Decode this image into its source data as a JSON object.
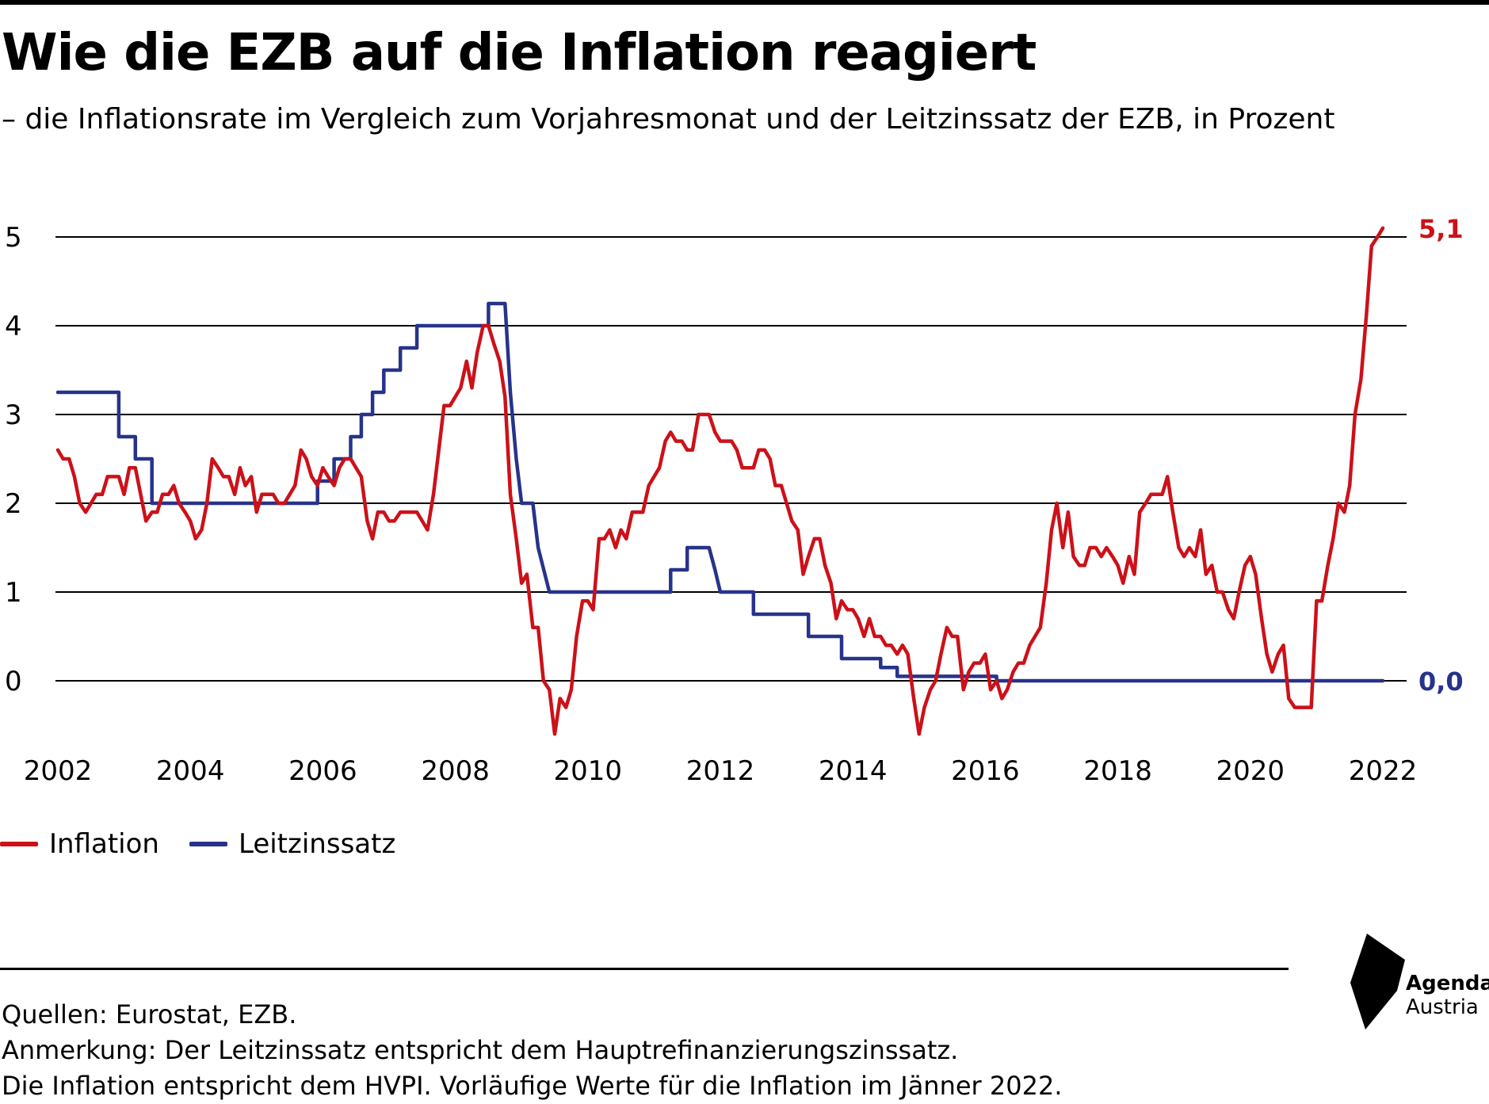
{
  "header": {
    "title": "Wie die EZB auf die Inflation reagiert",
    "subtitle": "– die Inflationsrate im Vergleich zum Vorjahresmonat und der Leitzinssatz der EZB, in Prozent"
  },
  "footer": {
    "source_lines": [
      "Quellen: Eurostat, EZB.",
      "Anmerkung: Der Leitzinssatz entspricht dem Hauptrefinanzierungszinssatz.",
      "Die Inflation entspricht dem HVPI. Vorläufige Werte für die Inflation im Jänner 2022."
    ]
  },
  "logo": {
    "line1": "Agenda",
    "line2": "Austria"
  },
  "colors": {
    "inflation": "#cc1119",
    "rate": "#27338a",
    "grid": "#000000"
  },
  "chart_data": {
    "type": "line",
    "title": "Wie die EZB auf die Inflation reagiert",
    "subtitle": "– die Inflationsrate im Vergleich zum Vorjahresmonat und der Leitzinssatz der EZB, in Prozent",
    "xlabel": "",
    "ylabel": "",
    "xlim": [
      2002.0,
      2022.083
    ],
    "ylim": [
      -0.65,
      5.1
    ],
    "y_ticks": [
      0,
      1,
      2,
      3,
      4,
      5
    ],
    "x_ticks": [
      2002,
      2004,
      2006,
      2008,
      2010,
      2012,
      2014,
      2016,
      2018,
      2020,
      2022
    ],
    "grid": "horizontal",
    "legend_position": "bottom-left",
    "end_labels": {
      "inflation": "5,1",
      "rate": "0,0"
    },
    "series": [
      {
        "name": "Inflation",
        "color": "#cc1119",
        "points": [
          [
            2002.0,
            2.6
          ],
          [
            2002.08,
            2.5
          ],
          [
            2002.17,
            2.5
          ],
          [
            2002.25,
            2.3
          ],
          [
            2002.33,
            2.0
          ],
          [
            2002.42,
            1.9
          ],
          [
            2002.5,
            2.0
          ],
          [
            2002.58,
            2.1
          ],
          [
            2002.67,
            2.1
          ],
          [
            2002.75,
            2.3
          ],
          [
            2002.83,
            2.3
          ],
          [
            2002.92,
            2.3
          ],
          [
            2003.0,
            2.1
          ],
          [
            2003.08,
            2.4
          ],
          [
            2003.17,
            2.4
          ],
          [
            2003.25,
            2.1
          ],
          [
            2003.33,
            1.8
          ],
          [
            2003.42,
            1.9
          ],
          [
            2003.5,
            1.9
          ],
          [
            2003.58,
            2.1
          ],
          [
            2003.67,
            2.1
          ],
          [
            2003.75,
            2.2
          ],
          [
            2003.83,
            2.0
          ],
          [
            2003.92,
            1.9
          ],
          [
            2004.0,
            1.8
          ],
          [
            2004.08,
            1.6
          ],
          [
            2004.17,
            1.7
          ],
          [
            2004.25,
            2.0
          ],
          [
            2004.33,
            2.5
          ],
          [
            2004.42,
            2.4
          ],
          [
            2004.5,
            2.3
          ],
          [
            2004.58,
            2.3
          ],
          [
            2004.67,
            2.1
          ],
          [
            2004.75,
            2.4
          ],
          [
            2004.83,
            2.2
          ],
          [
            2004.92,
            2.3
          ],
          [
            2005.0,
            1.9
          ],
          [
            2005.08,
            2.1
          ],
          [
            2005.17,
            2.1
          ],
          [
            2005.25,
            2.1
          ],
          [
            2005.33,
            2.0
          ],
          [
            2005.42,
            2.0
          ],
          [
            2005.5,
            2.1
          ],
          [
            2005.58,
            2.2
          ],
          [
            2005.67,
            2.6
          ],
          [
            2005.75,
            2.5
          ],
          [
            2005.83,
            2.3
          ],
          [
            2005.92,
            2.2
          ],
          [
            2006.0,
            2.4
          ],
          [
            2006.08,
            2.3
          ],
          [
            2006.17,
            2.2
          ],
          [
            2006.25,
            2.4
          ],
          [
            2006.33,
            2.5
          ],
          [
            2006.42,
            2.5
          ],
          [
            2006.5,
            2.4
          ],
          [
            2006.58,
            2.3
          ],
          [
            2006.67,
            1.8
          ],
          [
            2006.75,
            1.6
          ],
          [
            2006.83,
            1.9
          ],
          [
            2006.92,
            1.9
          ],
          [
            2007.0,
            1.8
          ],
          [
            2007.08,
            1.8
          ],
          [
            2007.17,
            1.9
          ],
          [
            2007.25,
            1.9
          ],
          [
            2007.33,
            1.9
          ],
          [
            2007.42,
            1.9
          ],
          [
            2007.5,
            1.8
          ],
          [
            2007.58,
            1.7
          ],
          [
            2007.67,
            2.1
          ],
          [
            2007.75,
            2.6
          ],
          [
            2007.83,
            3.1
          ],
          [
            2007.92,
            3.1
          ],
          [
            2008.0,
            3.2
          ],
          [
            2008.08,
            3.3
          ],
          [
            2008.17,
            3.6
          ],
          [
            2008.25,
            3.3
          ],
          [
            2008.33,
            3.7
          ],
          [
            2008.42,
            4.0
          ],
          [
            2008.5,
            4.0
          ],
          [
            2008.58,
            3.8
          ],
          [
            2008.67,
            3.6
          ],
          [
            2008.75,
            3.2
          ],
          [
            2008.83,
            2.1
          ],
          [
            2008.92,
            1.6
          ],
          [
            2009.0,
            1.1
          ],
          [
            2009.08,
            1.2
          ],
          [
            2009.17,
            0.6
          ],
          [
            2009.25,
            0.6
          ],
          [
            2009.33,
            0.0
          ],
          [
            2009.42,
            -0.1
          ],
          [
            2009.5,
            -0.6
          ],
          [
            2009.58,
            -0.2
          ],
          [
            2009.67,
            -0.3
          ],
          [
            2009.75,
            -0.1
          ],
          [
            2009.83,
            0.5
          ],
          [
            2009.92,
            0.9
          ],
          [
            2010.0,
            0.9
          ],
          [
            2010.08,
            0.8
          ],
          [
            2010.17,
            1.6
          ],
          [
            2010.25,
            1.6
          ],
          [
            2010.33,
            1.7
          ],
          [
            2010.42,
            1.5
          ],
          [
            2010.5,
            1.7
          ],
          [
            2010.58,
            1.6
          ],
          [
            2010.67,
            1.9
          ],
          [
            2010.75,
            1.9
          ],
          [
            2010.83,
            1.9
          ],
          [
            2010.92,
            2.2
          ],
          [
            2011.0,
            2.3
          ],
          [
            2011.08,
            2.4
          ],
          [
            2011.17,
            2.7
          ],
          [
            2011.25,
            2.8
          ],
          [
            2011.33,
            2.7
          ],
          [
            2011.42,
            2.7
          ],
          [
            2011.5,
            2.6
          ],
          [
            2011.58,
            2.6
          ],
          [
            2011.67,
            3.0
          ],
          [
            2011.75,
            3.0
          ],
          [
            2011.83,
            3.0
          ],
          [
            2011.92,
            2.8
          ],
          [
            2012.0,
            2.7
          ],
          [
            2012.08,
            2.7
          ],
          [
            2012.17,
            2.7
          ],
          [
            2012.25,
            2.6
          ],
          [
            2012.33,
            2.4
          ],
          [
            2012.42,
            2.4
          ],
          [
            2012.5,
            2.4
          ],
          [
            2012.58,
            2.6
          ],
          [
            2012.67,
            2.6
          ],
          [
            2012.75,
            2.5
          ],
          [
            2012.83,
            2.2
          ],
          [
            2012.92,
            2.2
          ],
          [
            2013.0,
            2.0
          ],
          [
            2013.08,
            1.8
          ],
          [
            2013.17,
            1.7
          ],
          [
            2013.25,
            1.2
          ],
          [
            2013.33,
            1.4
          ],
          [
            2013.42,
            1.6
          ],
          [
            2013.5,
            1.6
          ],
          [
            2013.58,
            1.3
          ],
          [
            2013.67,
            1.1
          ],
          [
            2013.75,
            0.7
          ],
          [
            2013.83,
            0.9
          ],
          [
            2013.92,
            0.8
          ],
          [
            2014.0,
            0.8
          ],
          [
            2014.08,
            0.7
          ],
          [
            2014.17,
            0.5
          ],
          [
            2014.25,
            0.7
          ],
          [
            2014.33,
            0.5
          ],
          [
            2014.42,
            0.5
          ],
          [
            2014.5,
            0.4
          ],
          [
            2014.58,
            0.4
          ],
          [
            2014.67,
            0.3
          ],
          [
            2014.75,
            0.4
          ],
          [
            2014.83,
            0.3
          ],
          [
            2014.92,
            -0.2
          ],
          [
            2015.0,
            -0.6
          ],
          [
            2015.08,
            -0.3
          ],
          [
            2015.17,
            -0.1
          ],
          [
            2015.25,
            0.0
          ],
          [
            2015.33,
            0.3
          ],
          [
            2015.42,
            0.6
          ],
          [
            2015.5,
            0.5
          ],
          [
            2015.58,
            0.5
          ],
          [
            2015.67,
            -0.1
          ],
          [
            2015.75,
            0.1
          ],
          [
            2015.83,
            0.2
          ],
          [
            2015.92,
            0.2
          ],
          [
            2016.0,
            0.3
          ],
          [
            2016.08,
            -0.1
          ],
          [
            2016.17,
            0.0
          ],
          [
            2016.25,
            -0.2
          ],
          [
            2016.33,
            -0.1
          ],
          [
            2016.42,
            0.1
          ],
          [
            2016.5,
            0.2
          ],
          [
            2016.58,
            0.2
          ],
          [
            2016.67,
            0.4
          ],
          [
            2016.75,
            0.5
          ],
          [
            2016.83,
            0.6
          ],
          [
            2016.92,
            1.1
          ],
          [
            2017.0,
            1.7
          ],
          [
            2017.08,
            2.0
          ],
          [
            2017.17,
            1.5
          ],
          [
            2017.25,
            1.9
          ],
          [
            2017.33,
            1.4
          ],
          [
            2017.42,
            1.3
          ],
          [
            2017.5,
            1.3
          ],
          [
            2017.58,
            1.5
          ],
          [
            2017.67,
            1.5
          ],
          [
            2017.75,
            1.4
          ],
          [
            2017.83,
            1.5
          ],
          [
            2017.92,
            1.4
          ],
          [
            2018.0,
            1.3
          ],
          [
            2018.08,
            1.1
          ],
          [
            2018.17,
            1.4
          ],
          [
            2018.25,
            1.2
          ],
          [
            2018.33,
            1.9
          ],
          [
            2018.42,
            2.0
          ],
          [
            2018.5,
            2.1
          ],
          [
            2018.58,
            2.1
          ],
          [
            2018.67,
            2.1
          ],
          [
            2018.75,
            2.3
          ],
          [
            2018.83,
            1.9
          ],
          [
            2018.92,
            1.5
          ],
          [
            2019.0,
            1.4
          ],
          [
            2019.08,
            1.5
          ],
          [
            2019.17,
            1.4
          ],
          [
            2019.25,
            1.7
          ],
          [
            2019.33,
            1.2
          ],
          [
            2019.42,
            1.3
          ],
          [
            2019.5,
            1.0
          ],
          [
            2019.58,
            1.0
          ],
          [
            2019.67,
            0.8
          ],
          [
            2019.75,
            0.7
          ],
          [
            2019.83,
            1.0
          ],
          [
            2019.92,
            1.3
          ],
          [
            2020.0,
            1.4
          ],
          [
            2020.08,
            1.2
          ],
          [
            2020.17,
            0.7
          ],
          [
            2020.25,
            0.3
          ],
          [
            2020.33,
            0.1
          ],
          [
            2020.42,
            0.3
          ],
          [
            2020.5,
            0.4
          ],
          [
            2020.58,
            -0.2
          ],
          [
            2020.67,
            -0.3
          ],
          [
            2020.75,
            -0.3
          ],
          [
            2020.83,
            -0.3
          ],
          [
            2020.92,
            -0.3
          ],
          [
            2021.0,
            0.9
          ],
          [
            2021.08,
            0.9
          ],
          [
            2021.17,
            1.3
          ],
          [
            2021.25,
            1.6
          ],
          [
            2021.33,
            2.0
          ],
          [
            2021.42,
            1.9
          ],
          [
            2021.5,
            2.2
          ],
          [
            2021.58,
            3.0
          ],
          [
            2021.67,
            3.4
          ],
          [
            2021.75,
            4.1
          ],
          [
            2021.83,
            4.9
          ],
          [
            2021.92,
            5.0
          ],
          [
            2022.0,
            5.1
          ]
        ]
      },
      {
        "name": "Leitzinssatz",
        "color": "#27338a",
        "points": [
          [
            2002.0,
            3.25
          ],
          [
            2002.92,
            3.25
          ],
          [
            2002.92,
            2.75
          ],
          [
            2003.17,
            2.75
          ],
          [
            2003.17,
            2.5
          ],
          [
            2003.42,
            2.5
          ],
          [
            2003.42,
            2.0
          ],
          [
            2005.92,
            2.0
          ],
          [
            2005.92,
            2.25
          ],
          [
            2006.17,
            2.25
          ],
          [
            2006.17,
            2.5
          ],
          [
            2006.42,
            2.5
          ],
          [
            2006.42,
            2.75
          ],
          [
            2006.58,
            2.75
          ],
          [
            2006.58,
            3.0
          ],
          [
            2006.75,
            3.0
          ],
          [
            2006.75,
            3.25
          ],
          [
            2006.92,
            3.25
          ],
          [
            2006.92,
            3.5
          ],
          [
            2007.17,
            3.5
          ],
          [
            2007.17,
            3.75
          ],
          [
            2007.42,
            3.75
          ],
          [
            2007.42,
            4.0
          ],
          [
            2008.5,
            4.0
          ],
          [
            2008.5,
            4.25
          ],
          [
            2008.75,
            4.25
          ],
          [
            2008.83,
            3.25
          ],
          [
            2008.92,
            2.5
          ],
          [
            2009.0,
            2.0
          ],
          [
            2009.17,
            2.0
          ],
          [
            2009.25,
            1.5
          ],
          [
            2009.42,
            1.0
          ],
          [
            2011.25,
            1.0
          ],
          [
            2011.25,
            1.25
          ],
          [
            2011.5,
            1.25
          ],
          [
            2011.5,
            1.5
          ],
          [
            2011.83,
            1.5
          ],
          [
            2011.92,
            1.25
          ],
          [
            2012.0,
            1.0
          ],
          [
            2012.5,
            1.0
          ],
          [
            2012.5,
            0.75
          ],
          [
            2013.33,
            0.75
          ],
          [
            2013.33,
            0.5
          ],
          [
            2013.83,
            0.5
          ],
          [
            2013.83,
            0.25
          ],
          [
            2014.42,
            0.25
          ],
          [
            2014.42,
            0.15
          ],
          [
            2014.67,
            0.15
          ],
          [
            2014.67,
            0.05
          ],
          [
            2016.17,
            0.05
          ],
          [
            2016.17,
            0.0
          ],
          [
            2022.0,
            0.0
          ]
        ]
      }
    ]
  }
}
